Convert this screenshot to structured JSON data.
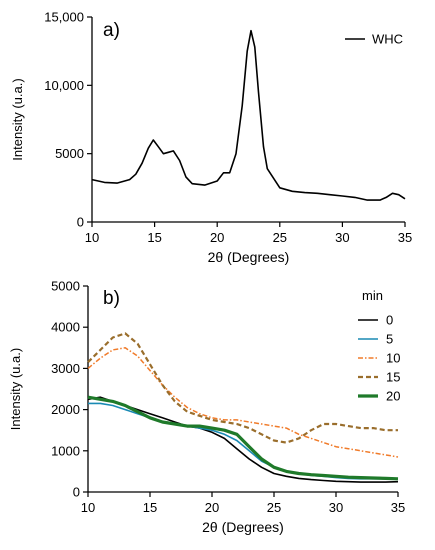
{
  "chart_data": [
    {
      "type": "line",
      "panel_label": "a)",
      "xlabel": "2θ (Degrees)",
      "ylabel": "Intensity (u.a.)",
      "xlim": [
        10,
        35
      ],
      "ylim": [
        0,
        15000
      ],
      "x_ticks": [
        10,
        15,
        20,
        25,
        30,
        35
      ],
      "x_tick_labels": [
        "10",
        "15",
        "20",
        "25",
        "30",
        "35"
      ],
      "y_ticks": [
        0,
        5000,
        10000,
        15000
      ],
      "y_tick_labels": [
        "0",
        "5000",
        "10,000",
        "15,000"
      ],
      "legend_position": "top-right",
      "series": [
        {
          "name": "WHC",
          "color": "#000000",
          "dash": "solid",
          "x": [
            10,
            11,
            12,
            13,
            13.5,
            14,
            14.5,
            14.9,
            15.3,
            15.7,
            16.1,
            16.5,
            17,
            17.5,
            18,
            19,
            20,
            20.5,
            21,
            21.5,
            22,
            22.4,
            22.7,
            23,
            23.3,
            23.7,
            24,
            25,
            26,
            27,
            28,
            29,
            30,
            31,
            32,
            33,
            33.5,
            34,
            34.5,
            35
          ],
          "y": [
            3100,
            2900,
            2850,
            3100,
            3500,
            4300,
            5400,
            6000,
            5500,
            5000,
            5100,
            5200,
            4500,
            3300,
            2800,
            2700,
            3000,
            3600,
            3600,
            5000,
            8500,
            12500,
            14000,
            12800,
            9500,
            5500,
            3900,
            2500,
            2250,
            2150,
            2100,
            2000,
            1900,
            1800,
            1600,
            1600,
            1800,
            2100,
            2000,
            1700
          ]
        }
      ]
    },
    {
      "type": "line",
      "panel_label": "b)",
      "xlabel": "2θ (Degrees)",
      "ylabel": "Intensity (u.a.)",
      "xlim": [
        10,
        35
      ],
      "ylim": [
        0,
        5000
      ],
      "x_ticks": [
        10,
        15,
        20,
        25,
        30,
        35
      ],
      "x_tick_labels": [
        "10",
        "15",
        "20",
        "25",
        "30",
        "35"
      ],
      "y_ticks": [
        0,
        1000,
        2000,
        3000,
        4000,
        5000
      ],
      "y_tick_labels": [
        "0",
        "1000",
        "2000",
        "3000",
        "4000",
        "5000"
      ],
      "legend_title": "min",
      "legend_position": "top-right",
      "series": [
        {
          "name": "0",
          "color": "#000000",
          "dash": "solid",
          "x": [
            10,
            11,
            12,
            13,
            14,
            15,
            16,
            17,
            18,
            19,
            20,
            21,
            22,
            23,
            24,
            25,
            26,
            27,
            28,
            29,
            30,
            31,
            32,
            33,
            34,
            35
          ],
          "y": [
            2250,
            2300,
            2200,
            2100,
            2000,
            1900,
            1800,
            1700,
            1600,
            1550,
            1450,
            1300,
            1050,
            800,
            600,
            450,
            380,
            330,
            300,
            280,
            260,
            250,
            240,
            240,
            240,
            250
          ]
        },
        {
          "name": "5",
          "color": "#1a8ab4",
          "dash": "solid",
          "x": [
            10,
            11,
            12,
            13,
            14,
            15,
            16,
            17,
            18,
            19,
            20,
            21,
            22,
            23,
            24,
            25,
            26,
            27,
            28,
            29,
            30,
            31,
            32,
            33,
            34,
            35
          ],
          "y": [
            2150,
            2150,
            2100,
            2000,
            1900,
            1800,
            1700,
            1650,
            1600,
            1550,
            1500,
            1400,
            1250,
            1000,
            750,
            600,
            500,
            450,
            400,
            380,
            350,
            330,
            320,
            320,
            320,
            320
          ]
        },
        {
          "name": "10",
          "color": "#f07b2a",
          "dash": "dashdot",
          "x": [
            10,
            11,
            12,
            13,
            14,
            15,
            16,
            17,
            18,
            19,
            20,
            21,
            22,
            23,
            24,
            25,
            26,
            27,
            28,
            29,
            30,
            31,
            32,
            33,
            34,
            35
          ],
          "y": [
            3000,
            3250,
            3450,
            3500,
            3300,
            2950,
            2600,
            2300,
            2050,
            1900,
            1800,
            1750,
            1750,
            1700,
            1650,
            1600,
            1550,
            1400,
            1300,
            1200,
            1100,
            1050,
            1000,
            950,
            900,
            850
          ]
        },
        {
          "name": "15",
          "color": "#9a6e2c",
          "dash": "dashed",
          "x": [
            10,
            11,
            12,
            13,
            14,
            15,
            16,
            17,
            18,
            19,
            20,
            21,
            22,
            23,
            24,
            25,
            26,
            27,
            28,
            29,
            30,
            31,
            32,
            33,
            34,
            35
          ],
          "y": [
            3150,
            3450,
            3750,
            3850,
            3600,
            3100,
            2600,
            2200,
            1950,
            1850,
            1750,
            1700,
            1650,
            1550,
            1400,
            1250,
            1200,
            1300,
            1500,
            1650,
            1650,
            1600,
            1550,
            1550,
            1500,
            1500
          ]
        },
        {
          "name": "20",
          "color": "#1f7a2a",
          "dash": "thick",
          "x": [
            10,
            11,
            12,
            13,
            14,
            15,
            16,
            17,
            18,
            19,
            20,
            21,
            22,
            23,
            24,
            25,
            26,
            27,
            28,
            29,
            30,
            31,
            32,
            33,
            34,
            35
          ],
          "y": [
            2300,
            2250,
            2200,
            2100,
            1950,
            1800,
            1700,
            1650,
            1600,
            1600,
            1550,
            1500,
            1400,
            1100,
            800,
            600,
            500,
            450,
            420,
            400,
            380,
            360,
            350,
            340,
            330,
            320
          ]
        }
      ]
    }
  ]
}
